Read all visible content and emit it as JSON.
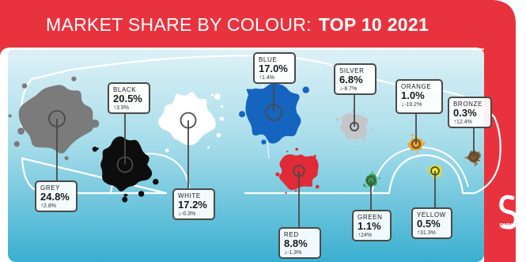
{
  "title": {
    "prefix": "MARKET SHARE BY COLOUR:",
    "bold": "TOP 10 2021"
  },
  "brand": "SMMT",
  "colors": {
    "brand_red": "#e8333f",
    "sky_top": "#d5eef5",
    "sky_bottom": "#3fb3d3"
  },
  "chart_data": {
    "type": "infographic",
    "title": "MARKET SHARE BY COLOUR: TOP 10 2021",
    "categories": [
      "GREY",
      "BLACK",
      "WHITE",
      "BLUE",
      "RED",
      "SILVER",
      "GREEN",
      "ORANGE",
      "YELLOW",
      "BRONZE"
    ],
    "series": [
      {
        "values": [
          24.8,
          20.5,
          17.2,
          17.0,
          8.8,
          6.8,
          1.1,
          1.0,
          0.5,
          0.3
        ]
      }
    ],
    "change_pct": [
      2.8,
      3.9,
      -0.3,
      1.4,
      -1.3,
      -8.7,
      24,
      -19.2,
      31.3,
      12.4
    ]
  },
  "cards": [
    {
      "name": "GREY",
      "value": "24.8%",
      "arrow": "↑",
      "change": "2.8%",
      "splat": "#7b7b7b"
    },
    {
      "name": "BLACK",
      "value": "20.5%",
      "arrow": "↑",
      "change": "3.9%",
      "splat": "#0d0d0d"
    },
    {
      "name": "WHITE",
      "value": "17.2%",
      "arrow": "↓",
      "change": "-0.3%",
      "splat": "#ffffff"
    },
    {
      "name": "BLUE",
      "value": "17.0%",
      "arrow": "↑",
      "change": "1.4%",
      "splat": "#1565c0"
    },
    {
      "name": "RED",
      "value": "8.8%",
      "arrow": "↓",
      "change": "-1.3%",
      "splat": "#e02a37"
    },
    {
      "name": "SILVER",
      "value": "6.8%",
      "arrow": "↓",
      "change": "-8.7%",
      "splat": "#c4c6c9"
    },
    {
      "name": "GREEN",
      "value": "1.1%",
      "arrow": "↑",
      "change": "24%",
      "splat": "#2e9e48"
    },
    {
      "name": "ORANGE",
      "value": "1.0%",
      "arrow": "↓",
      "change": "-19.2%",
      "splat": "#f0a020"
    },
    {
      "name": "YELLOW",
      "value": "0.5%",
      "arrow": "↑",
      "change": "31.3%",
      "splat": "#e8e227"
    },
    {
      "name": "BRONZE",
      "value": "0.3%",
      "arrow": "↑",
      "change": "12.4%",
      "splat": "#8a5a22"
    }
  ]
}
